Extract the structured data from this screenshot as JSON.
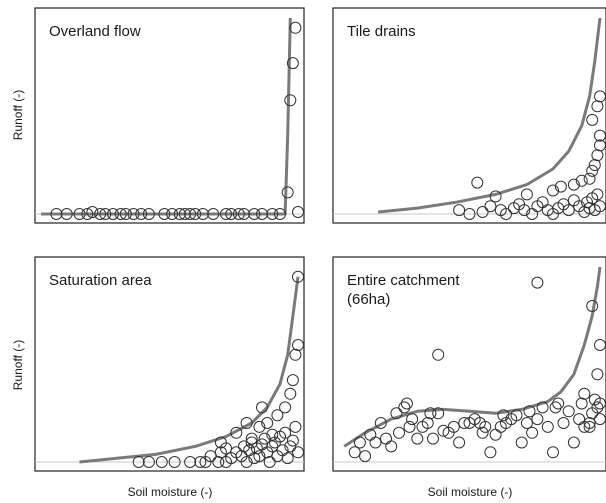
{
  "figure": {
    "ylabel_left": "Runoff (-)",
    "xlabel_bottom": "Soil moisture (-)"
  },
  "chart_data": [
    {
      "type": "scatter",
      "title": "Overland flow",
      "xlabel": "",
      "ylabel": "Runoff (-)",
      "xlim": [
        0,
        1
      ],
      "ylim": [
        0,
        1
      ],
      "grid": false,
      "curve": {
        "x": [
          0.0,
          0.9,
          0.95,
          0.96,
          0.97
        ],
        "y": [
          0.0,
          0.0,
          0.0,
          0.4,
          1.0
        ]
      },
      "points": {
        "x": [
          0.06,
          0.1,
          0.15,
          0.18,
          0.2,
          0.23,
          0.25,
          0.28,
          0.31,
          0.33,
          0.36,
          0.39,
          0.42,
          0.48,
          0.51,
          0.54,
          0.56,
          0.58,
          0.6,
          0.63,
          0.67,
          0.72,
          0.74,
          0.77,
          0.79,
          0.83,
          0.86,
          0.9,
          0.93,
          0.96,
          0.97,
          0.98,
          0.99,
          1.0
        ],
        "y": [
          0,
          0,
          0,
          0,
          0.01,
          0,
          0,
          0,
          0,
          0,
          0,
          0,
          0,
          0,
          0,
          0,
          0,
          0,
          0,
          0,
          0,
          0,
          0,
          0,
          0,
          0,
          0,
          0,
          0,
          0.11,
          0.58,
          0.77,
          0.95,
          0.01
        ]
      }
    },
    {
      "type": "scatter",
      "title": "Tile drains",
      "xlabel": "",
      "ylabel": "",
      "xlim": [
        0,
        1
      ],
      "ylim": [
        0,
        1
      ],
      "grid": false,
      "curve": {
        "x": [
          0.15,
          0.3,
          0.45,
          0.6,
          0.72,
          0.82,
          0.88,
          0.93,
          0.96,
          0.98,
          1.0
        ],
        "y": [
          0.01,
          0.03,
          0.06,
          0.1,
          0.15,
          0.23,
          0.32,
          0.45,
          0.6,
          0.78,
          1.0
        ]
      },
      "points": {
        "x": [
          0.46,
          0.5,
          0.55,
          0.58,
          0.62,
          0.64,
          0.67,
          0.69,
          0.71,
          0.74,
          0.76,
          0.78,
          0.8,
          0.82,
          0.84,
          0.86,
          0.88,
          0.9,
          0.92,
          0.94,
          0.95,
          0.96,
          0.97,
          0.98,
          0.99,
          1.0,
          0.6,
          0.72,
          0.82,
          0.85,
          0.9,
          0.93,
          0.96,
          0.97,
          0.98,
          0.99,
          1.0,
          1.0,
          0.97,
          0.99,
          1.0,
          0.53
        ],
        "y": [
          0.02,
          0.0,
          0.01,
          0.04,
          0.02,
          0.0,
          0.03,
          0.05,
          0.02,
          0.0,
          0.04,
          0.06,
          0.02,
          0.0,
          0.03,
          0.05,
          0.02,
          0.07,
          0.04,
          0.01,
          0.06,
          0.03,
          0.08,
          0.02,
          0.1,
          0.04,
          0.09,
          0.1,
          0.12,
          0.14,
          0.15,
          0.17,
          0.18,
          0.22,
          0.25,
          0.3,
          0.35,
          0.4,
          0.48,
          0.55,
          0.6,
          0.16
        ]
      }
    },
    {
      "type": "scatter",
      "title": "Saturation area",
      "xlabel": "Soil moisture (-)",
      "ylabel": "Runoff (-)",
      "xlim": [
        0,
        1
      ],
      "ylim": [
        0,
        1
      ],
      "grid": false,
      "curve": {
        "x": [
          0.15,
          0.3,
          0.45,
          0.6,
          0.72,
          0.82,
          0.88,
          0.93,
          0.96,
          0.98,
          1.0
        ],
        "y": [
          0.0,
          0.02,
          0.04,
          0.08,
          0.13,
          0.2,
          0.28,
          0.4,
          0.55,
          0.75,
          0.95
        ]
      },
      "points": {
        "x": [
          0.38,
          0.42,
          0.47,
          0.52,
          0.58,
          0.62,
          0.64,
          0.66,
          0.69,
          0.7,
          0.72,
          0.74,
          0.76,
          0.78,
          0.79,
          0.8,
          0.81,
          0.82,
          0.83,
          0.84,
          0.85,
          0.86,
          0.87,
          0.88,
          0.89,
          0.9,
          0.91,
          0.92,
          0.93,
          0.94,
          0.95,
          0.96,
          0.97,
          0.98,
          0.99,
          1.0,
          0.7,
          0.76,
          0.8,
          0.82,
          0.85,
          0.88,
          0.9,
          0.92,
          0.95,
          0.97,
          0.98,
          0.99,
          1.0,
          1.0,
          0.86,
          0.72
        ],
        "y": [
          0,
          0,
          0,
          0,
          0,
          0,
          0,
          0.03,
          0,
          0.05,
          0,
          0.02,
          0.05,
          0.03,
          0.08,
          0.0,
          0.06,
          0.1,
          0.02,
          0.07,
          0.03,
          0.09,
          0.12,
          0.05,
          0.0,
          0.08,
          0.1,
          0.03,
          0.13,
          0.06,
          0.15,
          0.02,
          0.08,
          0.11,
          0.18,
          0.05,
          0.1,
          0.15,
          0.2,
          0.12,
          0.18,
          0.2,
          0.14,
          0.24,
          0.28,
          0.35,
          0.42,
          0.55,
          0.6,
          0.95,
          0.28,
          0.07
        ]
      }
    },
    {
      "type": "scatter",
      "title": "Entire catchment (66ha)",
      "xlabel": "Soil moisture (-)",
      "ylabel": "",
      "xlim": [
        0,
        1
      ],
      "ylim": [
        0,
        1
      ],
      "grid": false,
      "curve": {
        "x": [
          0.02,
          0.1,
          0.2,
          0.3,
          0.4,
          0.5,
          0.6,
          0.7,
          0.8,
          0.85,
          0.9,
          0.94,
          0.97,
          0.99,
          1.0
        ],
        "y": [
          0.08,
          0.15,
          0.22,
          0.26,
          0.27,
          0.26,
          0.25,
          0.27,
          0.31,
          0.36,
          0.45,
          0.6,
          0.75,
          0.9,
          1.0
        ]
      },
      "points": {
        "x": [
          0.06,
          0.1,
          0.14,
          0.2,
          0.23,
          0.27,
          0.3,
          0.34,
          0.38,
          0.42,
          0.46,
          0.5,
          0.55,
          0.58,
          0.62,
          0.66,
          0.7,
          0.74,
          0.78,
          0.82,
          0.86,
          0.9,
          0.94,
          0.97,
          1.0,
          0.08,
          0.12,
          0.16,
          0.22,
          0.25,
          0.28,
          0.32,
          0.36,
          0.4,
          0.48,
          0.52,
          0.56,
          0.6,
          0.64,
          0.68,
          0.72,
          0.76,
          0.8,
          0.84,
          0.88,
          0.92,
          0.96,
          0.99,
          0.18,
          0.26,
          0.35,
          0.44,
          0.54,
          0.63,
          0.73,
          0.83,
          0.93,
          0.98,
          0.99,
          1.0,
          0.94,
          0.96,
          1.0,
          0.38,
          0.76,
          0.97
        ],
        "y": [
          0.05,
          0.03,
          0.1,
          0.08,
          0.15,
          0.18,
          0.12,
          0.2,
          0.25,
          0.15,
          0.1,
          0.2,
          0.15,
          0.05,
          0.18,
          0.22,
          0.1,
          0.15,
          0.28,
          0.05,
          0.2,
          0.1,
          0.18,
          0.25,
          0.3,
          0.1,
          0.14,
          0.2,
          0.25,
          0.28,
          0.22,
          0.18,
          0.12,
          0.16,
          0.2,
          0.22,
          0.18,
          0.14,
          0.2,
          0.24,
          0.2,
          0.22,
          0.18,
          0.3,
          0.26,
          0.22,
          0.2,
          0.28,
          0.12,
          0.3,
          0.25,
          0.18,
          0.2,
          0.24,
          0.26,
          0.28,
          0.3,
          0.32,
          0.45,
          0.6,
          0.35,
          0.18,
          0.22,
          0.55,
          0.92,
          0.8
        ]
      }
    }
  ]
}
